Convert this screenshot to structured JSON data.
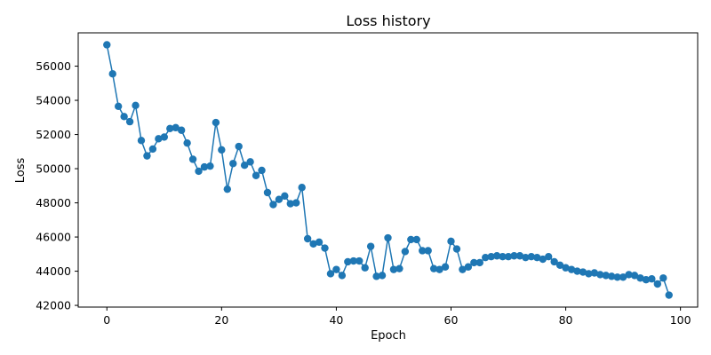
{
  "chart_data": {
    "type": "line",
    "title": "Loss history",
    "xlabel": "Epoch",
    "ylabel": "Loss",
    "xlim": [
      -5,
      103
    ],
    "ylim": [
      41900,
      57950
    ],
    "xticks": [
      0,
      20,
      40,
      60,
      80,
      100
    ],
    "yticks": [
      42000,
      44000,
      46000,
      48000,
      50000,
      52000,
      54000,
      56000
    ],
    "grid": false,
    "legend": "none",
    "colors": {
      "series": "#1f77b4",
      "axes": "#000000"
    },
    "series": [
      {
        "marker": "circle",
        "x": [
          0,
          1,
          2,
          3,
          4,
          5,
          6,
          7,
          8,
          9,
          10,
          11,
          12,
          13,
          14,
          15,
          16,
          17,
          18,
          19,
          20,
          21,
          22,
          23,
          24,
          25,
          26,
          27,
          28,
          29,
          30,
          31,
          32,
          33,
          34,
          35,
          36,
          37,
          38,
          39,
          40,
          41,
          42,
          43,
          44,
          45,
          46,
          47,
          48,
          49,
          50,
          51,
          52,
          53,
          54,
          55,
          56,
          57,
          58,
          59,
          60,
          61,
          62,
          63,
          64,
          65,
          66,
          67,
          68,
          69,
          70,
          71,
          72,
          73,
          74,
          75,
          76,
          77,
          78,
          79,
          80,
          81,
          82,
          83,
          84,
          85,
          86,
          87,
          88,
          89,
          90,
          91,
          92,
          93,
          94,
          95,
          96,
          97,
          98
        ],
        "values": [
          57250,
          55550,
          53650,
          53050,
          52750,
          53700,
          51650,
          50750,
          51150,
          51750,
          51850,
          52350,
          52400,
          52250,
          51500,
          50550,
          49850,
          50100,
          50150,
          52700,
          51100,
          48800,
          50300,
          51300,
          50200,
          50400,
          49600,
          49900,
          48600,
          47900,
          48200,
          48400,
          47950,
          48000,
          48900,
          45900,
          45600,
          45700,
          45350,
          43850,
          44100,
          43750,
          44550,
          44600,
          44600,
          44200,
          45450,
          43700,
          43750,
          45950,
          44100,
          44150,
          45150,
          45850,
          45850,
          45200,
          45200,
          44150,
          44100,
          44250,
          45750,
          45300,
          44100,
          44250,
          44500,
          44500,
          44800,
          44850,
          44900,
          44850,
          44850,
          44900,
          44900,
          44800,
          44850,
          44800,
          44700,
          44850,
          44550,
          44350,
          44200,
          44100,
          44000,
          43950,
          43850,
          43900,
          43800,
          43750,
          43700,
          43650,
          43650,
          43800,
          43750,
          43600,
          43500,
          43550,
          43250,
          43600,
          42600
        ]
      }
    ]
  }
}
